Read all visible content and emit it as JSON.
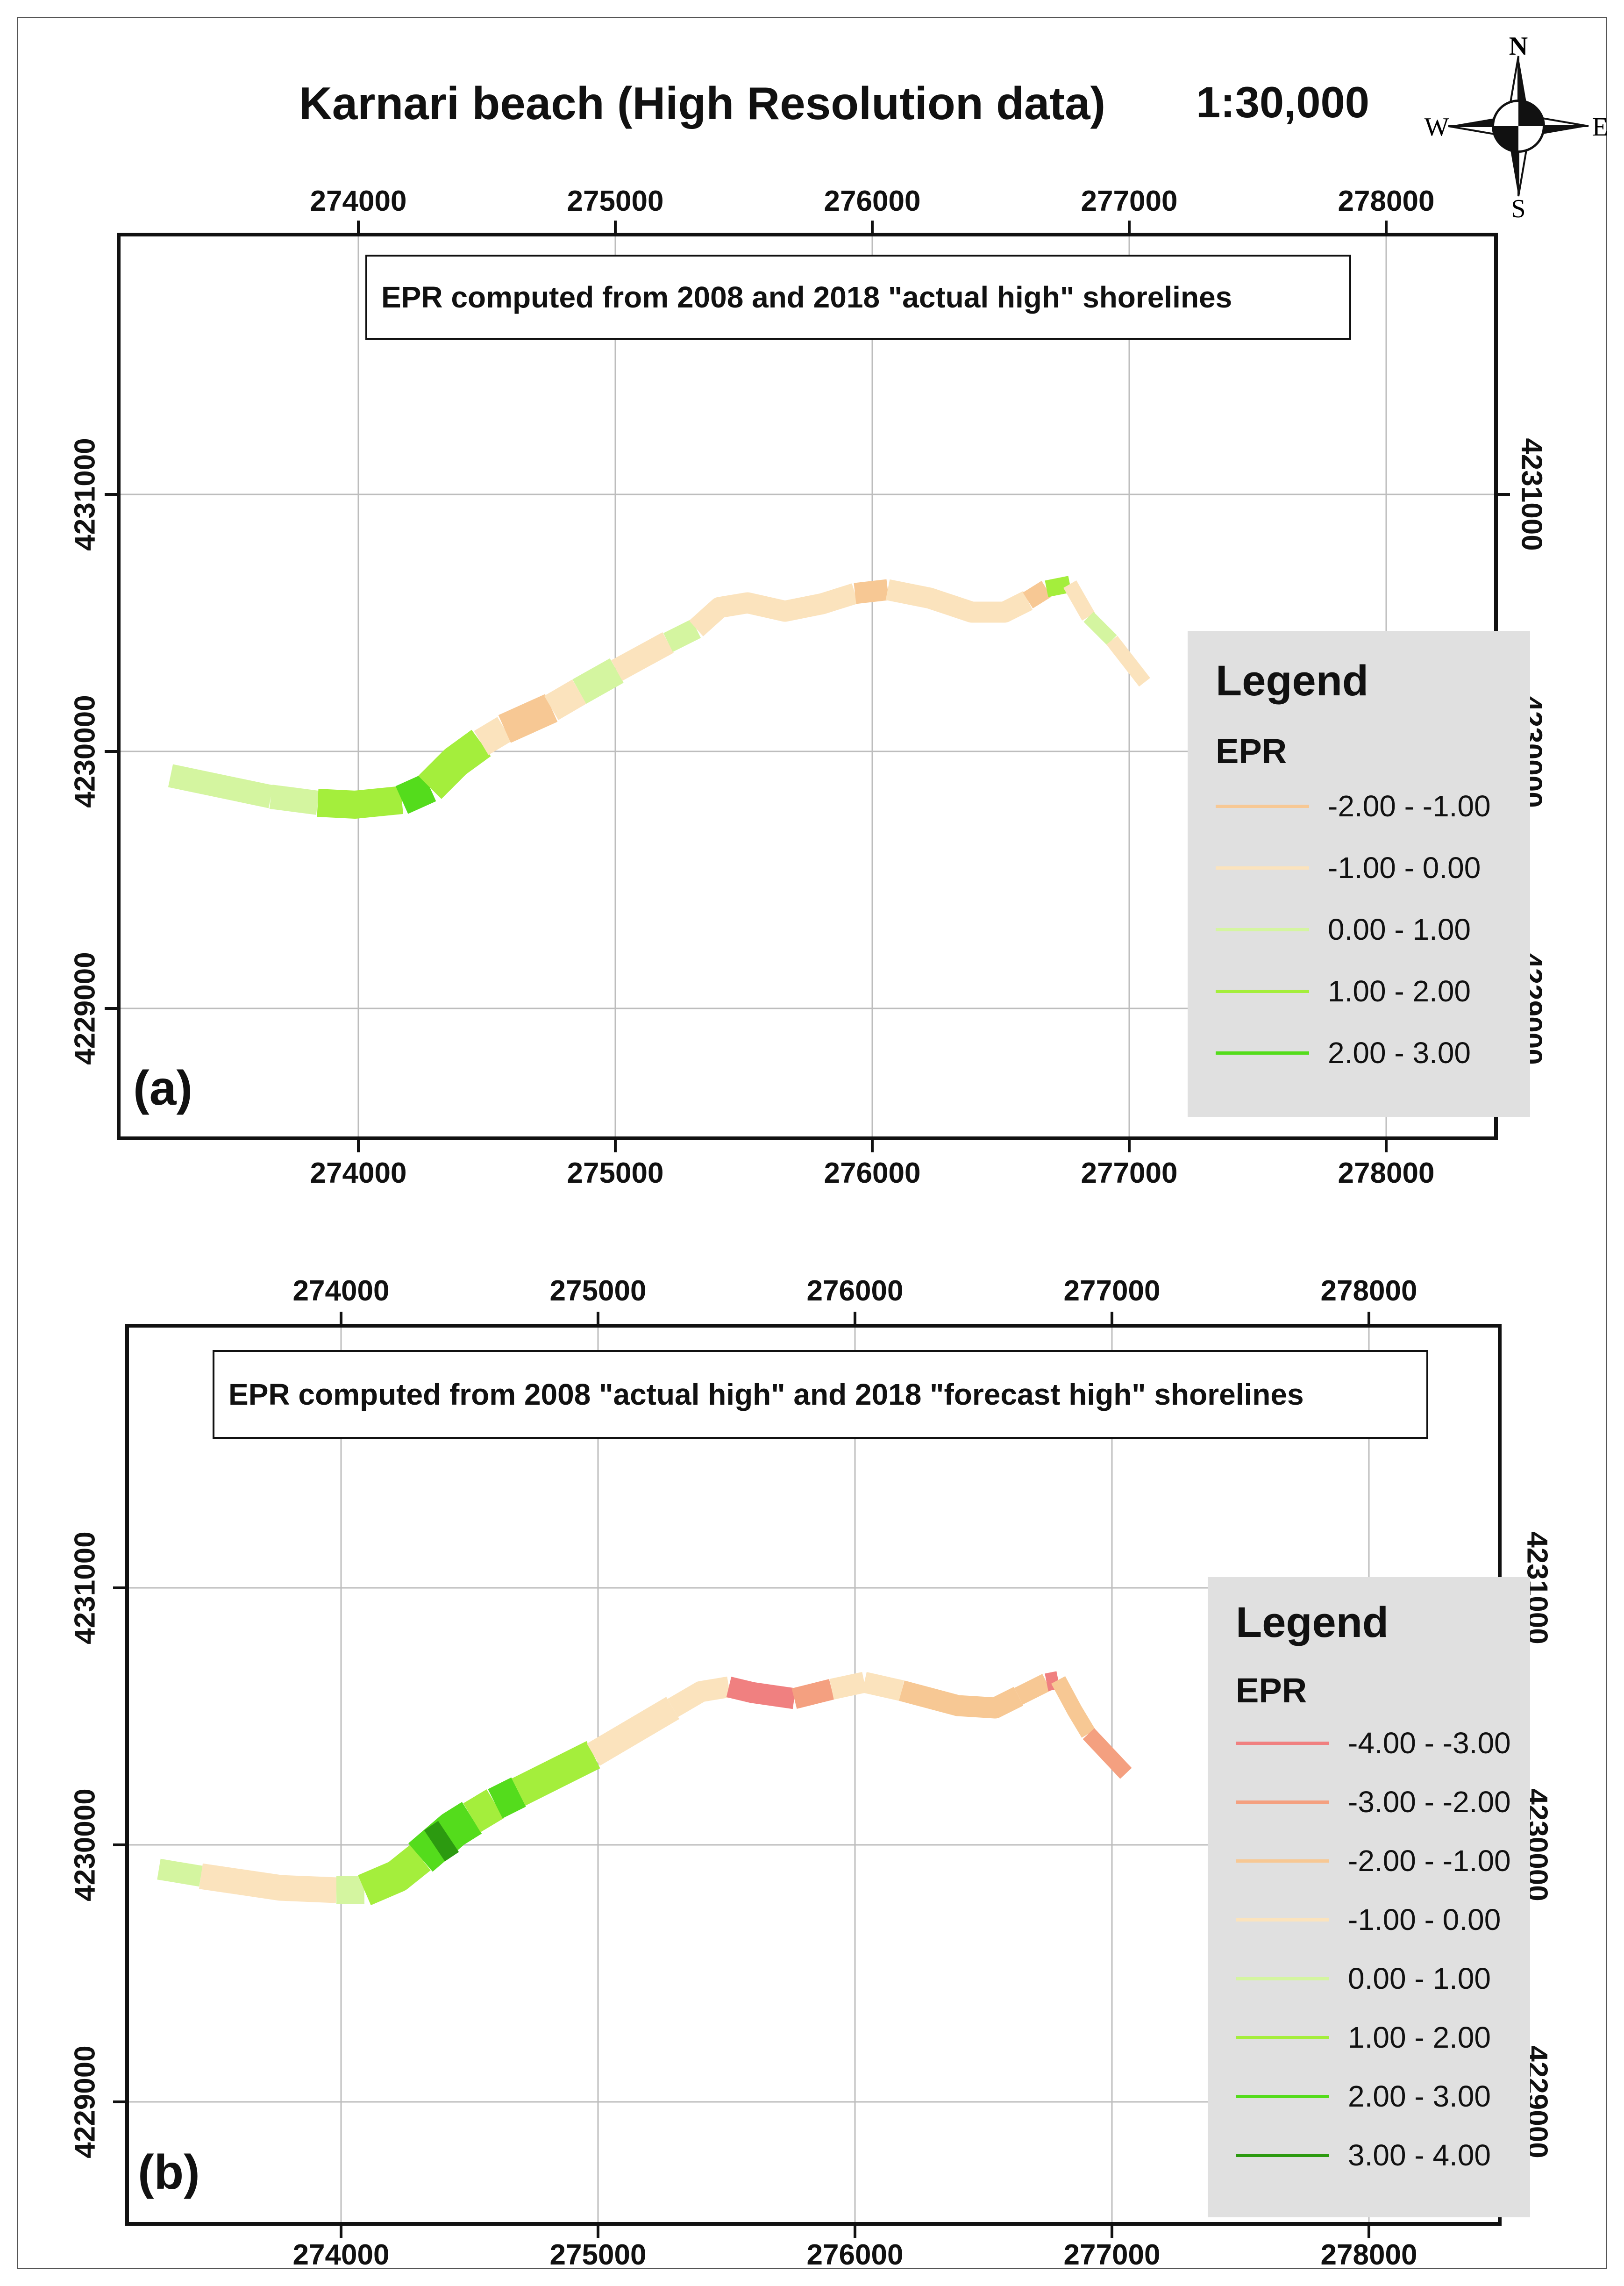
{
  "title": "Karnari beach (High Resolution data)",
  "scale": "1:30,000",
  "compass": {
    "n": "N",
    "s": "S",
    "e": "E",
    "w": "W"
  },
  "colors": {
    "epr_m4_m3": "#f08080",
    "epr_m3_m2": "#f4a080",
    "epr_m2_m1": "#f7c894",
    "epr_m1_0": "#fbe3bd",
    "epr_0_1": "#d4f5a0",
    "epr_1_2": "#a4ee3c",
    "epr_2_3": "#54dc1c",
    "epr_3_4": "#2c9a10"
  },
  "panels": [
    {
      "label": "(a)",
      "caption": "EPR computed from 2008 and 2018 \"actual high\" shorelines",
      "x_ticks": [
        "274000",
        "275000",
        "276000",
        "277000",
        "278000"
      ],
      "y_ticks": [
        "4231000",
        "4230000",
        "4229000"
      ],
      "legend_title": "Legend",
      "legend_subtitle": "EPR",
      "legend_items": [
        {
          "label": "-2.00 - -1.00",
          "color": "#f7c894"
        },
        {
          "label": "-1.00 - 0.00",
          "color": "#fbe3bd"
        },
        {
          "label": "0.00 - 1.00",
          "color": "#d4f5a0"
        },
        {
          "label": "1.00 - 2.00",
          "color": "#a4ee3c"
        },
        {
          "label": "2.00 - 3.00",
          "color": "#54dc1c"
        }
      ]
    },
    {
      "label": "(b)",
      "caption": "EPR computed from 2008 \"actual high\" and 2018 \"forecast high\"  shorelines",
      "x_ticks": [
        "274000",
        "275000",
        "276000",
        "277000",
        "278000"
      ],
      "y_ticks": [
        "4231000",
        "4230000",
        "4229000"
      ],
      "legend_title": "Legend",
      "legend_subtitle": "EPR",
      "legend_items": [
        {
          "label": "-4.00 - -3.00",
          "color": "#f08080"
        },
        {
          "label": "-3.00 - -2.00",
          "color": "#f4a080"
        },
        {
          "label": "-2.00 - -1.00",
          "color": "#f7c894"
        },
        {
          "label": "-1.00 - 0.00",
          "color": "#fbe3bd"
        },
        {
          "label": "0.00 - 1.00",
          "color": "#d4f5a0"
        },
        {
          "label": "1.00 - 2.00",
          "color": "#a4ee3c"
        },
        {
          "label": "2.00 - 3.00",
          "color": "#54dc1c"
        },
        {
          "label": "3.00 - 4.00",
          "color": "#2c9a10"
        }
      ]
    }
  ]
}
